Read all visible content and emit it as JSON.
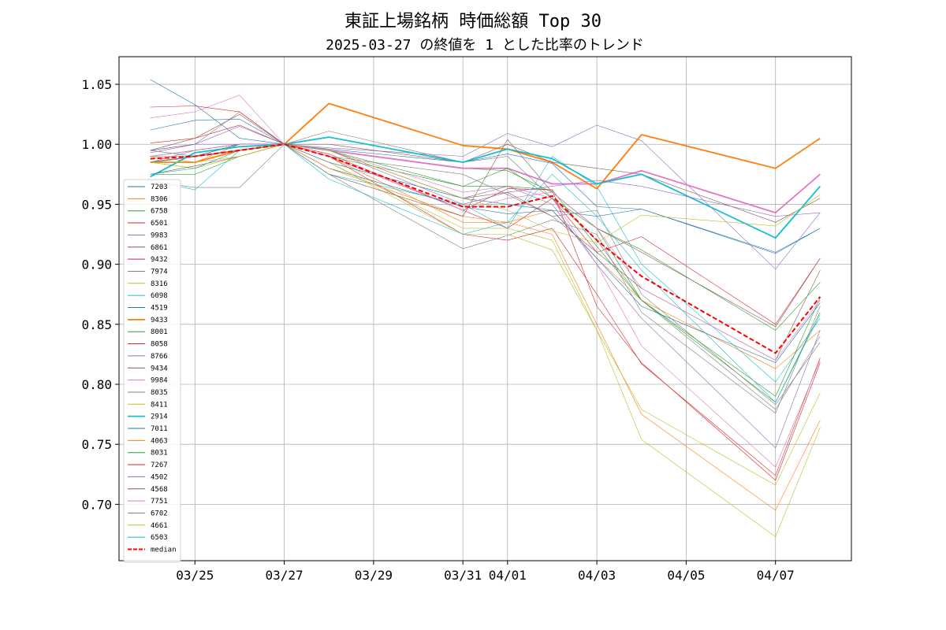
{
  "chart_data": {
    "type": "line",
    "title": "東証上場銘柄 時価総額 Top 30",
    "subtitle": "2025-03-27 の終値を 1 とした比率のトレンド",
    "xlabel": "",
    "ylabel": "",
    "x_dates": [
      "03/24",
      "03/25",
      "03/26",
      "03/27",
      "03/28",
      "03/31",
      "04/01",
      "04/02",
      "04/03",
      "04/04",
      "04/07",
      "04/08"
    ],
    "x_index": [
      0,
      1,
      2,
      3,
      4,
      7,
      8,
      9,
      10,
      11,
      14,
      15
    ],
    "x_ticks": [
      {
        "label": "03/25",
        "x": 1
      },
      {
        "label": "03/27",
        "x": 3
      },
      {
        "label": "03/29",
        "x": 5
      },
      {
        "label": "03/31",
        "x": 7
      },
      {
        "label": "04/01",
        "x": 8
      },
      {
        "label": "04/03",
        "x": 10
      },
      {
        "label": "04/05",
        "x": 12
      },
      {
        "label": "04/07",
        "x": 14
      }
    ],
    "xlim": [
      -0.7,
      15.7
    ],
    "ylim": [
      0.653,
      1.073
    ],
    "y_ticks": [
      {
        "label": "1.05",
        "v": 1.05
      },
      {
        "label": "1.00",
        "v": 1.0
      },
      {
        "label": "0.95",
        "v": 0.95
      },
      {
        "label": "0.90",
        "v": 0.9
      },
      {
        "label": "0.85",
        "v": 0.85
      },
      {
        "label": "0.80",
        "v": 0.8
      },
      {
        "label": "0.75",
        "v": 0.75
      },
      {
        "label": "0.70",
        "v": 0.7
      }
    ],
    "grid": true,
    "legend_position": "lower-left",
    "series": [
      {
        "name": "7203",
        "color": "#1f77b4",
        "width": 0.6,
        "values": [
          1.054,
          1.033,
          1.005,
          1.0,
          0.996,
          0.985,
          0.992,
          0.984,
          0.948,
          0.946,
          0.909,
          0.93
        ]
      },
      {
        "name": "8306",
        "color": "#ff7f0e",
        "width": 0.6,
        "values": [
          0.99,
          0.985,
          1.0,
          1.0,
          0.99,
          0.935,
          0.935,
          0.945,
          0.905,
          0.87,
          0.813,
          0.845
        ]
      },
      {
        "name": "6758",
        "color": "#2ca02c",
        "width": 0.6,
        "values": [
          0.975,
          0.975,
          0.99,
          1.0,
          0.995,
          0.98,
          0.978,
          0.96,
          0.93,
          0.87,
          0.785,
          0.86
        ]
      },
      {
        "name": "6501",
        "color": "#d62728",
        "width": 0.6,
        "values": [
          1.001,
          1.005,
          1.016,
          1.0,
          0.992,
          0.945,
          0.93,
          0.955,
          0.91,
          0.923,
          0.85,
          0.905
        ]
      },
      {
        "name": "9983",
        "color": "#9467bd",
        "width": 0.6,
        "values": [
          0.985,
          0.995,
          1.0,
          1.0,
          0.997,
          0.99,
          1.009,
          0.998,
          1.016,
          1.003,
          0.896,
          0.943
        ]
      },
      {
        "name": "6861",
        "color": "#8c564b",
        "width": 0.6,
        "values": [
          0.985,
          0.99,
          1.0,
          1.0,
          0.995,
          0.955,
          0.96,
          0.94,
          0.91,
          0.88,
          0.82,
          0.895
        ]
      },
      {
        "name": "9432",
        "color": "#e377c2",
        "width": 1.8,
        "values": [
          0.985,
          0.99,
          0.995,
          1.0,
          0.995,
          0.98,
          0.98,
          0.967,
          0.967,
          0.978,
          0.943,
          0.975
        ]
      },
      {
        "name": "7974",
        "color": "#7f7f7f",
        "width": 0.6,
        "values": [
          0.995,
          1.0,
          1.027,
          1.0,
          0.99,
          0.975,
          0.958,
          0.94,
          0.945,
          0.875,
          0.783,
          0.835
        ]
      },
      {
        "name": "8316",
        "color": "#bcbd22",
        "width": 0.6,
        "values": [
          0.985,
          0.98,
          0.99,
          1.0,
          0.985,
          0.93,
          0.93,
          0.92,
          0.845,
          0.779,
          0.716,
          0.793
        ]
      },
      {
        "name": "6098",
        "color": "#17becf",
        "width": 0.6,
        "values": [
          0.97,
          0.962,
          0.995,
          1.0,
          0.975,
          0.95,
          0.93,
          0.99,
          0.965,
          0.9,
          0.802,
          0.855
        ]
      },
      {
        "name": "4519",
        "color": "#1f77b4",
        "width": 0.6,
        "values": [
          1.012,
          1.02,
          1.021,
          1.0,
          0.98,
          0.948,
          0.942,
          0.945,
          0.94,
          0.946,
          0.91,
          0.93
        ]
      },
      {
        "name": "9433",
        "color": "#ff7f0e",
        "width": 1.8,
        "values": [
          0.985,
          0.985,
          0.995,
          1.0,
          1.034,
          0.999,
          0.996,
          0.985,
          0.963,
          1.008,
          0.98,
          1.005
        ]
      },
      {
        "name": "8001",
        "color": "#2ca02c",
        "width": 0.6,
        "values": [
          0.985,
          0.99,
          0.995,
          1.0,
          0.99,
          0.965,
          0.98,
          0.955,
          0.93,
          0.912,
          0.845,
          0.885
        ]
      },
      {
        "name": "8058",
        "color": "#d62728",
        "width": 0.6,
        "values": [
          0.99,
          0.995,
          1.0,
          1.0,
          0.99,
          0.925,
          0.92,
          0.93,
          0.875,
          0.817,
          0.724,
          0.822
        ]
      },
      {
        "name": "8766",
        "color": "#9467bd",
        "width": 0.6,
        "values": [
          0.995,
          1.0,
          1.0,
          1.0,
          0.995,
          0.955,
          0.965,
          0.95,
          0.9,
          0.855,
          0.747,
          0.845
        ]
      },
      {
        "name": "9434",
        "color": "#8c564b",
        "width": 0.6,
        "values": [
          0.995,
          1.005,
          1.025,
          1.0,
          1.0,
          0.985,
          1.0,
          0.985,
          0.98,
          0.975,
          0.935,
          0.955
        ]
      },
      {
        "name": "9984",
        "color": "#e377c2",
        "width": 0.6,
        "values": [
          1.022,
          1.027,
          1.041,
          1.0,
          0.995,
          0.96,
          0.965,
          0.955,
          0.9,
          0.832,
          0.731,
          0.82
        ]
      },
      {
        "name": "8035",
        "color": "#7f7f7f",
        "width": 0.6,
        "values": [
          0.99,
          0.99,
          1.0,
          1.0,
          1.011,
          0.985,
          0.99,
          0.955,
          0.92,
          0.87,
          0.779,
          0.84
        ]
      },
      {
        "name": "8411",
        "color": "#bcbd22",
        "width": 0.6,
        "values": [
          0.985,
          0.98,
          0.995,
          1.0,
          0.985,
          0.925,
          0.925,
          0.912,
          0.845,
          0.754,
          0.673,
          0.764
        ]
      },
      {
        "name": "2914",
        "color": "#17becf",
        "width": 1.8,
        "values": [
          0.973,
          0.993,
          0.998,
          1.0,
          1.006,
          0.985,
          0.996,
          0.988,
          0.967,
          0.975,
          0.922,
          0.965
        ]
      },
      {
        "name": "7011",
        "color": "#1f77b4",
        "width": 0.6,
        "values": [
          0.995,
          0.99,
          1.0,
          1.0,
          0.985,
          0.955,
          0.95,
          0.945,
          0.905,
          0.865,
          0.818,
          0.868
        ]
      },
      {
        "name": "4063",
        "color": "#ff7f0e",
        "width": 0.6,
        "values": [
          0.985,
          0.985,
          0.995,
          1.0,
          0.98,
          0.94,
          0.935,
          0.925,
          0.85,
          0.775,
          0.695,
          0.77
        ]
      },
      {
        "name": "8031",
        "color": "#2ca02c",
        "width": 0.6,
        "values": [
          0.99,
          0.995,
          1.0,
          1.0,
          0.995,
          0.965,
          0.965,
          0.962,
          0.915,
          0.87,
          0.79,
          0.872
        ]
      },
      {
        "name": "7267",
        "color": "#d62728",
        "width": 0.6,
        "values": [
          1.031,
          1.032,
          1.027,
          1.0,
          0.99,
          0.945,
          0.963,
          0.962,
          0.865,
          0.818,
          0.72,
          0.818
        ]
      },
      {
        "name": "4502",
        "color": "#9467bd",
        "width": 0.6,
        "values": [
          0.993,
          1.0,
          1.015,
          1.0,
          0.995,
          0.95,
          0.96,
          0.965,
          0.97,
          0.965,
          0.94,
          0.943
        ]
      },
      {
        "name": "4568",
        "color": "#8c564b",
        "width": 0.6,
        "values": [
          0.975,
          0.982,
          0.99,
          1.0,
          0.975,
          0.94,
          1.004,
          0.96,
          0.93,
          0.91,
          0.848,
          0.905
        ]
      },
      {
        "name": "7751",
        "color": "#e377c2",
        "width": 0.6,
        "values": [
          0.99,
          0.995,
          1.0,
          1.0,
          0.99,
          0.945,
          0.955,
          0.96,
          0.93,
          0.88,
          0.82,
          0.87
        ]
      },
      {
        "name": "6702",
        "color": "#7f7f7f",
        "width": 0.6,
        "values": [
          0.969,
          0.964,
          0.964,
          1.0,
          0.975,
          0.913,
          0.924,
          0.937,
          0.925,
          0.86,
          0.776,
          0.865
        ]
      },
      {
        "name": "4661",
        "color": "#bcbd22",
        "width": 0.6,
        "values": [
          0.985,
          0.985,
          0.99,
          1.0,
          0.995,
          0.955,
          0.945,
          0.928,
          0.918,
          0.941,
          0.932,
          0.958
        ]
      },
      {
        "name": "6503",
        "color": "#17becf",
        "width": 0.6,
        "values": [
          0.975,
          0.98,
          0.995,
          1.0,
          0.971,
          0.925,
          0.935,
          0.975,
          0.94,
          0.895,
          0.785,
          0.858
        ]
      },
      {
        "name": "median",
        "color": "#ff0000",
        "width": 2.0,
        "dashed": true,
        "values": [
          0.988,
          0.99,
          0.995,
          1.0,
          0.99,
          0.948,
          0.948,
          0.957,
          0.92,
          0.89,
          0.826,
          0.873
        ]
      }
    ]
  }
}
